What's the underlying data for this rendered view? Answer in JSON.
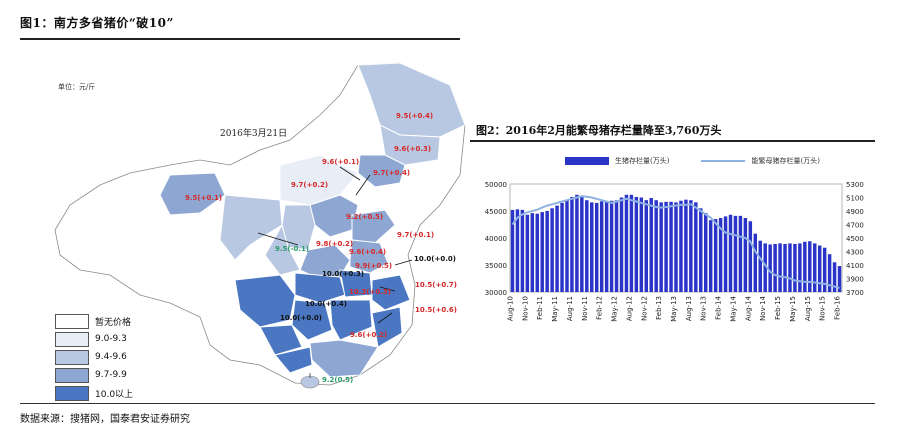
{
  "figure1": {
    "title": "图1：南方多省猪价“破10”",
    "unit": "单位：元/斤",
    "date": "2016年3月21日",
    "labels": [
      {
        "text": "9.5(+0.4)",
        "color": "#d42a2a"
      },
      {
        "text": "9.6(+0.3)",
        "color": "#d42a2a"
      },
      {
        "text": "9.6(+0.1)",
        "color": "#d42a2a"
      },
      {
        "text": "9.7(+0.4)",
        "color": "#d42a2a"
      },
      {
        "text": "9.7(+0.2)",
        "color": "#d42a2a"
      },
      {
        "text": "9.5(+0.1)",
        "color": "#d42a2a"
      },
      {
        "text": "9.2(+0.5)",
        "color": "#d42a2a"
      },
      {
        "text": "9.8(+0.2)",
        "color": "#d42a2a"
      },
      {
        "text": "9.7(+0.1)",
        "color": "#d42a2a"
      },
      {
        "text": "9.5(-0.1)",
        "color": "#2a9a6a"
      },
      {
        "text": "9.6(+0.4)",
        "color": "#d42a2a"
      },
      {
        "text": "9.9(+0.5)",
        "color": "#d42a2a"
      },
      {
        "text": "10.0(+0.0)",
        "color": "#111111"
      },
      {
        "text": "10.0(+0.3)",
        "color": "#111111"
      },
      {
        "text": "10.5(+0.7)",
        "color": "#d42a2a"
      },
      {
        "text": "10.3(+0.3)",
        "color": "#d42a2a"
      },
      {
        "text": "10.0(+0.4)",
        "color": "#111111"
      },
      {
        "text": "10.0(+0.0)",
        "color": "#111111"
      },
      {
        "text": "10.5(+0.6)",
        "color": "#d42a2a"
      },
      {
        "text": "9.6(+0.2)",
        "color": "#d42a2a"
      },
      {
        "text": "9.2(0.5)",
        "color": "#2a9a6a"
      }
    ],
    "legend": [
      {
        "label": "暂无价格",
        "color": "#ffffff"
      },
      {
        "label": "9.0-9.3",
        "color": "#e8edf6"
      },
      {
        "label": "9.4-9.6",
        "color": "#b9c8e2"
      },
      {
        "label": "9.7-9.9",
        "color": "#8ea7d2"
      },
      {
        "label": "10.0以上",
        "color": "#4a76c2"
      }
    ]
  },
  "figure2": {
    "title": "图2：2016年2月能繁母猪存栏量降至3,760万头",
    "legend_bar": "生猪存栏量(万头)",
    "legend_line": "能繁母猪存栏量(万头)",
    "bar_color": "#2b34c8",
    "line_color": "#8fb3e3"
  },
  "source": "数据来源：搜猪网，国泰君安证券研究",
  "chart_data": {
    "type": "bar",
    "categories": [
      "Aug-10",
      "Sep-10",
      "Oct-10",
      "Nov-10",
      "Dec-10",
      "Jan-11",
      "Feb-11",
      "Mar-11",
      "Apr-11",
      "May-11",
      "Jun-11",
      "Jul-11",
      "Aug-11",
      "Sep-11",
      "Oct-11",
      "Nov-11",
      "Dec-11",
      "Jan-12",
      "Feb-12",
      "Mar-12",
      "Apr-12",
      "May-12",
      "Jun-12",
      "Jul-12",
      "Aug-12",
      "Sep-12",
      "Oct-12",
      "Nov-12",
      "Dec-12",
      "Jan-13",
      "Feb-13",
      "Mar-13",
      "Apr-13",
      "May-13",
      "Jun-13",
      "Jul-13",
      "Aug-13",
      "Sep-13",
      "Oct-13",
      "Nov-13",
      "Dec-13",
      "Jan-14",
      "Feb-14",
      "Mar-14",
      "Apr-14",
      "May-14",
      "Jun-14",
      "Jul-14",
      "Aug-14",
      "Sep-14",
      "Oct-14",
      "Nov-14",
      "Dec-14",
      "Jan-15",
      "Feb-15",
      "Mar-15",
      "Apr-15",
      "May-15",
      "Jun-15",
      "Jul-15",
      "Aug-15",
      "Sep-15",
      "Oct-15",
      "Nov-15",
      "Dec-15",
      "Jan-16",
      "Feb-16"
    ],
    "tick_labels": [
      "Aug-10",
      "Nov-10",
      "Feb-11",
      "May-11",
      "Aug-11",
      "Nov-11",
      "Feb-12",
      "May-12",
      "Aug-12",
      "Nov-12",
      "Feb-13",
      "May-13",
      "Aug-13",
      "Nov-13",
      "Feb-14",
      "May-14",
      "Aug-14",
      "Nov-14",
      "Feb-15",
      "May-15",
      "Aug-15",
      "Nov-15",
      "Feb-16"
    ],
    "series": [
      {
        "name": "生猪存栏量(万头)",
        "type": "bar",
        "axis": "left",
        "values": [
          45200,
          45300,
          45200,
          44300,
          44600,
          44500,
          44800,
          45000,
          45500,
          46000,
          46500,
          47000,
          47600,
          48000,
          47800,
          47000,
          46600,
          46500,
          46800,
          46700,
          46900,
          47000,
          47500,
          48000,
          48000,
          47600,
          47500,
          47000,
          47400,
          47000,
          46600,
          46700,
          46700,
          46600,
          46900,
          47100,
          47000,
          46600,
          45500,
          44600,
          43300,
          43500,
          43700,
          44000,
          44300,
          44100,
          44100,
          43700,
          43100,
          40800,
          39500,
          39000,
          38800,
          38900,
          39000,
          38900,
          39000,
          38900,
          39000,
          39300,
          39400,
          39000,
          38600,
          38200,
          37000,
          35500,
          34800
        ]
      },
      {
        "name": "能繁母猪存栏量(万头)",
        "type": "line",
        "axis": "right",
        "values": [
          4700,
          4800,
          4850,
          4880,
          4900,
          4920,
          4950,
          4980,
          5000,
          5020,
          5040,
          5060,
          5080,
          5100,
          5120,
          5110,
          5100,
          5080,
          5060,
          5040,
          5020,
          5040,
          5060,
          5080,
          5060,
          5040,
          5020,
          5000,
          4980,
          4960,
          4950,
          4960,
          4970,
          4980,
          4990,
          4990,
          5000,
          4950,
          4900,
          4850,
          4800,
          4720,
          4640,
          4580,
          4560,
          4540,
          4520,
          4500,
          4450,
          4300,
          4200,
          4100,
          4000,
          3950,
          3930,
          3920,
          3900,
          3870,
          3860,
          3850,
          3850,
          3840,
          3830,
          3820,
          3800,
          3780,
          3760
        ]
      }
    ],
    "ylim_left": [
      30000,
      50000
    ],
    "ylim_right": [
      3700,
      5300
    ],
    "yticks_left": [
      30000,
      35000,
      40000,
      45000,
      50000
    ],
    "yticks_right": [
      3700,
      3900,
      4100,
      4300,
      4500,
      4700,
      4900,
      5100,
      5300
    ],
    "legend_position": "top"
  }
}
